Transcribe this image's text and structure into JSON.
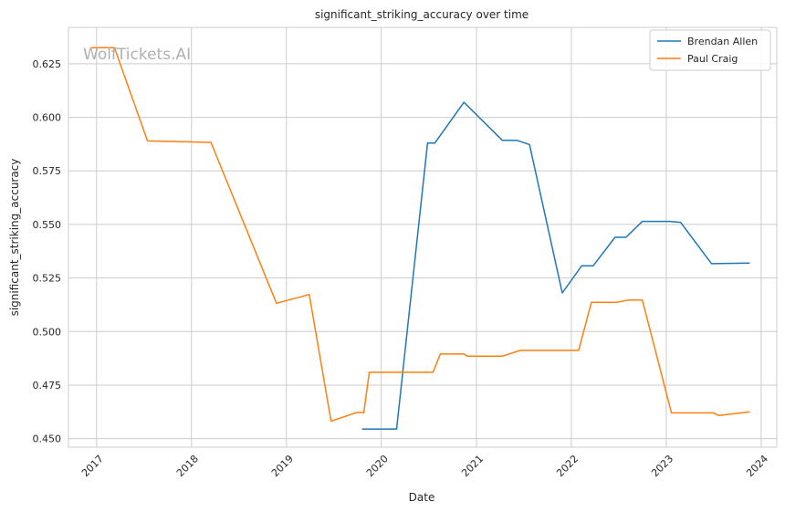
{
  "chart_data": {
    "type": "line",
    "title": "significant_striking_accuracy over time",
    "xlabel": "Date",
    "ylabel": "significant_striking_accuracy",
    "watermark": "WolfTickets.AI",
    "x_ticks": [
      "2017",
      "2018",
      "2019",
      "2020",
      "2021",
      "2022",
      "2023",
      "2024"
    ],
    "y_ticks": [
      "0.450",
      "0.475",
      "0.500",
      "0.525",
      "0.550",
      "0.575",
      "0.600",
      "0.625"
    ],
    "ylim": [
      0.446,
      0.642
    ],
    "xlim": [
      "2016-09-15",
      "2024-03-01"
    ],
    "grid": true,
    "legend_position": "top-right",
    "series": [
      {
        "name": "Brendan Allen",
        "color": "#1f77b4",
        "points": [
          [
            "2019-10-19",
            0.4545
          ],
          [
            "2020-02-29",
            0.4545
          ],
          [
            "2020-06-27",
            0.588
          ],
          [
            "2020-07-25",
            0.588
          ],
          [
            "2020-11-14",
            0.607
          ],
          [
            "2021-04-10",
            0.5893
          ],
          [
            "2021-06-05",
            0.5893
          ],
          [
            "2021-07-24",
            0.5873
          ],
          [
            "2021-11-27",
            0.518
          ],
          [
            "2022-02-10",
            0.5307
          ],
          [
            "2022-03-26",
            0.5307
          ],
          [
            "2022-06-18",
            0.544
          ],
          [
            "2022-07-30",
            0.544
          ],
          [
            "2022-10-01",
            0.5514
          ],
          [
            "2023-01-15",
            0.5514
          ],
          [
            "2023-02-25",
            0.551
          ],
          [
            "2023-06-24",
            0.5317
          ],
          [
            "2023-11-18",
            0.532
          ]
        ]
      },
      {
        "name": "Paul Craig",
        "color": "#ff7f0e",
        "points": [
          [
            "2016-12-10",
            0.6325
          ],
          [
            "2017-03-11",
            0.6325
          ],
          [
            "2017-07-16",
            0.589
          ],
          [
            "2018-03-17",
            0.5883
          ],
          [
            "2018-11-24",
            0.5132
          ],
          [
            "2019-03-30",
            0.5173
          ],
          [
            "2019-06-22",
            0.4582
          ],
          [
            "2019-09-28",
            0.4622
          ],
          [
            "2019-10-26",
            0.4622
          ],
          [
            "2019-11-16",
            0.481
          ],
          [
            "2020-07-18",
            0.481
          ],
          [
            "2020-08-15",
            0.4895
          ],
          [
            "2020-11-14",
            0.4895
          ],
          [
            "2020-11-28",
            0.4885
          ],
          [
            "2021-04-10",
            0.4885
          ],
          [
            "2021-06-19",
            0.4912
          ],
          [
            "2022-01-29",
            0.4912
          ],
          [
            "2022-03-19",
            0.5136
          ],
          [
            "2022-06-25",
            0.5136
          ],
          [
            "2022-08-06",
            0.5147
          ],
          [
            "2022-10-01",
            0.5147
          ],
          [
            "2023-01-21",
            0.462
          ],
          [
            "2023-07-01",
            0.462
          ],
          [
            "2023-07-22",
            0.4608
          ],
          [
            "2023-11-18",
            0.4625
          ]
        ]
      }
    ]
  }
}
